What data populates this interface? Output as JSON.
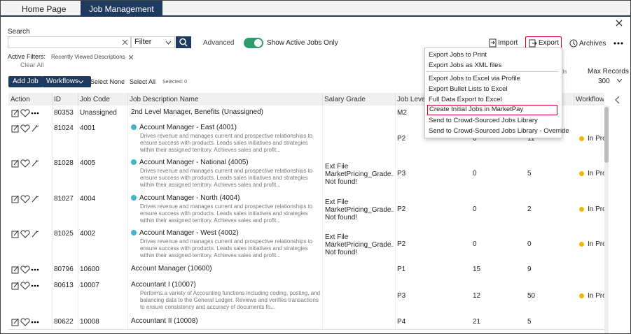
{
  "tabs": [
    "Home Page",
    "Job Management"
  ],
  "search": {
    "label": "Search",
    "filter": "Filter",
    "advanced": "Advanced",
    "toggle": "Show Active Jobs Only"
  },
  "toolbar": {
    "import": "Import",
    "export": "Export",
    "archives": "Archives"
  },
  "filters": {
    "label": "Active Filters:",
    "chip": "Recently Viewed Descriptions",
    "clear": "Clear All"
  },
  "actions": {
    "add": "Add Job",
    "workflows": "Workflows",
    "select_none": "Select None",
    "select_all": "Select All",
    "selected": "Selected: 0"
  },
  "records": {
    "hidden": "ds",
    "label": "Max Records",
    "value": "300"
  },
  "export_menu": {
    "items": [
      "Export Jobs to Print",
      "Export Jobs as XML files",
      "Export Jobs to Excel via Profile",
      "Export Bullet Lists to Excel",
      "Full Data Export to Excel",
      "Create Initial Jobs in MarketPay",
      "Send to Crowd-Sourced Jobs Library",
      "Send to Crowd-Sourced Jobs Library - Override"
    ],
    "highlighted": 5
  },
  "table": {
    "columns": [
      "Action",
      "ID",
      "Job Code",
      "Job Description Name",
      "Salary Grade",
      "Job Level",
      "Workflow S"
    ],
    "rows": [
      {
        "id": "80353",
        "code": "Unassigned",
        "name": "2nd Level Manager, Benefits (Unassigned)",
        "level": "M2"
      },
      {
        "id": "81024",
        "code": "4001",
        "name": "Account Manager - East (4001)",
        "description": "Drives revenue and manages current and prospective relationships to ensure success with products. Leads sales initiatives and strategies within their assigned territory. Achieves sales and profit...",
        "level": "P2",
        "c7": "0",
        "c8": "11",
        "status": "In Pro"
      },
      {
        "id": "81028",
        "code": "4005",
        "name": "Account Manager - National (4005)",
        "description": "Drives revenue and manages current and prospective relationships to ensure success with products. Leads sales initiatives and strategies within their assigned territory. Achieves sales and profit...",
        "grade": "Ext File MarketPricing_Grade.xls Not found!",
        "level": "P3",
        "c7": "0",
        "c8": "5",
        "status": "In Pro"
      },
      {
        "id": "81027",
        "code": "4004",
        "name": "Account Manager - North (4004)",
        "description": "Drives revenue and manages current and prospective relationships to ensure success with products. Leads sales initiatives and strategies within their assigned territory. Achieves sales and profit...",
        "grade": "Ext File MarketPricing_Grade.xls Not found!",
        "level": "P2",
        "c7": "0",
        "c8": "2",
        "status": "In Pro"
      },
      {
        "id": "81025",
        "code": "4002",
        "name": "Account Manager - West (4002)",
        "description": "Drives revenue and manages current and prospective relationships to ensure success with products. Leads sales initiatives and strategies within their assigned territory. Achieves sales and profit...",
        "grade": "Ext File MarketPricing_Grade.xls Not found!",
        "level": "P2",
        "c7": "0",
        "c8": "0",
        "status": "In Pro"
      },
      {
        "id": "80796",
        "code": "10600",
        "name": "Account Manager (10600)",
        "level": "P1",
        "c7": "15",
        "c8": "9"
      },
      {
        "id": "80613",
        "code": "10007",
        "name": "Accountant I (10007)",
        "description": "Performs a variety of Accounting functions including coding, posting, and balancing data to the General Ledger. Reviews and verifies transactions to ensure consistency and accuracy of documents fo...",
        "level": "P3",
        "c7": "12",
        "c8": "50",
        "status": "In Pro"
      },
      {
        "id": "80622",
        "code": "10008",
        "name": "Accountant II (10008)",
        "level": "P4",
        "c7": "21",
        "c8": "5"
      }
    ]
  }
}
